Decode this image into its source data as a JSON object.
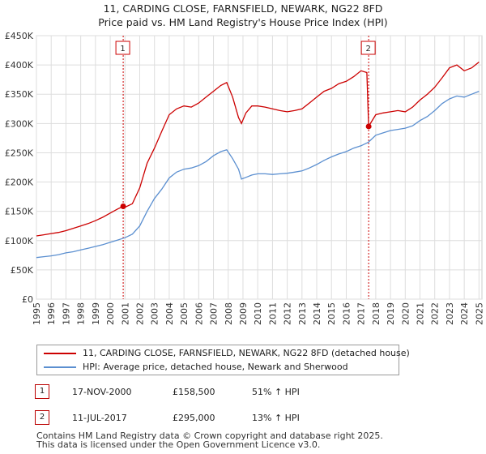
{
  "title": {
    "line1": "11, CARDING CLOSE, FARNSFIELD, NEWARK, NG22 8FD",
    "line2": "Price paid vs. HM Land Registry's House Price Index (HPI)"
  },
  "colors": {
    "property": "#cc0000",
    "hpi": "#5b8fd0",
    "grid": "#dddddd",
    "marker": "#cc0000"
  },
  "chart_data": {
    "type": "line",
    "title": "11, CARDING CLOSE, FARNSFIELD, NEWARK, NG22 8FD — Price paid vs. HM Land Registry's House Price Index (HPI)",
    "xlim": [
      1995.0,
      2025.2
    ],
    "ylim": [
      0,
      450000
    ],
    "y_ticks": [
      {
        "value": 0,
        "label": "£0"
      },
      {
        "value": 50000,
        "label": "£50K"
      },
      {
        "value": 100000,
        "label": "£100K"
      },
      {
        "value": 150000,
        "label": "£150K"
      },
      {
        "value": 200000,
        "label": "£200K"
      },
      {
        "value": 250000,
        "label": "£250K"
      },
      {
        "value": 300000,
        "label": "£300K"
      },
      {
        "value": 350000,
        "label": "£350K"
      },
      {
        "value": 400000,
        "label": "£400K"
      },
      {
        "value": 450000,
        "label": "£450K"
      }
    ],
    "x_ticks": [
      "1995",
      "1996",
      "1997",
      "1998",
      "1999",
      "2000",
      "2001",
      "2002",
      "2003",
      "2004",
      "2005",
      "2006",
      "2007",
      "2008",
      "2009",
      "2010",
      "2011",
      "2012",
      "2013",
      "2014",
      "2015",
      "2016",
      "2017",
      "2018",
      "2019",
      "2020",
      "2021",
      "2022",
      "2023",
      "2024",
      "2025"
    ],
    "grid": true,
    "series": [
      {
        "name": "11, CARDING CLOSE, FARNSFIELD, NEWARK, NG22 8FD (detached house)",
        "x": [
          1995.0,
          1995.5,
          1996.0,
          1996.5,
          1997.0,
          1997.5,
          1998.0,
          1998.5,
          1999.0,
          1999.5,
          2000.0,
          2000.5,
          2000.88,
          2001.0,
          2001.5,
          2002.0,
          2002.5,
          2003.0,
          2003.5,
          2004.0,
          2004.5,
          2005.0,
          2005.5,
          2006.0,
          2006.5,
          2007.0,
          2007.5,
          2007.9,
          2008.3,
          2008.7,
          2008.9,
          2009.2,
          2009.6,
          2010.0,
          2010.5,
          2011.0,
          2011.5,
          2012.0,
          2012.5,
          2013.0,
          2013.5,
          2014.0,
          2014.5,
          2015.0,
          2015.5,
          2016.0,
          2016.5,
          2017.0,
          2017.4,
          2017.52,
          2018.0,
          2018.5,
          2019.0,
          2019.5,
          2020.0,
          2020.5,
          2021.0,
          2021.5,
          2022.0,
          2022.5,
          2023.0,
          2023.5,
          2024.0,
          2024.5,
          2025.0
        ],
        "values": [
          108000,
          110000,
          112000,
          114000,
          117000,
          121000,
          125000,
          129000,
          134000,
          140000,
          147000,
          154000,
          158500,
          157000,
          163000,
          190000,
          232000,
          258000,
          287000,
          315000,
          325000,
          330000,
          328000,
          335000,
          345000,
          355000,
          365000,
          370000,
          345000,
          310000,
          300000,
          318000,
          330000,
          330000,
          328000,
          325000,
          322000,
          320000,
          322000,
          325000,
          335000,
          345000,
          355000,
          360000,
          368000,
          372000,
          380000,
          390000,
          387000,
          295000,
          315000,
          318000,
          320000,
          322000,
          320000,
          328000,
          340000,
          350000,
          362000,
          378000,
          395000,
          400000,
          390000,
          395000,
          405000
        ]
      },
      {
        "name": "HPI: Average price, detached house, Newark and Sherwood",
        "x": [
          1995.0,
          1995.5,
          1996.0,
          1996.5,
          1997.0,
          1997.5,
          1998.0,
          1998.5,
          1999.0,
          1999.5,
          2000.0,
          2000.5,
          2001.0,
          2001.5,
          2002.0,
          2002.5,
          2003.0,
          2003.5,
          2004.0,
          2004.5,
          2005.0,
          2005.5,
          2006.0,
          2006.5,
          2007.0,
          2007.5,
          2007.9,
          2008.3,
          2008.7,
          2008.9,
          2009.2,
          2009.6,
          2010.0,
          2010.5,
          2011.0,
          2011.5,
          2012.0,
          2012.5,
          2013.0,
          2013.5,
          2014.0,
          2014.5,
          2015.0,
          2015.5,
          2016.0,
          2016.5,
          2017.0,
          2017.5,
          2018.0,
          2018.5,
          2019.0,
          2019.5,
          2020.0,
          2020.5,
          2021.0,
          2021.5,
          2022.0,
          2022.5,
          2023.0,
          2023.5,
          2024.0,
          2024.5,
          2025.0
        ],
        "values": [
          71000,
          72500,
          74000,
          76000,
          79000,
          81000,
          84000,
          87000,
          90000,
          93000,
          97000,
          101000,
          105000,
          111000,
          125000,
          150000,
          172000,
          188000,
          207000,
          217000,
          222000,
          224000,
          228000,
          235000,
          245000,
          252000,
          255000,
          240000,
          222000,
          205000,
          208000,
          212000,
          214000,
          214000,
          213000,
          214000,
          215000,
          217000,
          219000,
          224000,
          230000,
          237000,
          243000,
          248000,
          252000,
          258000,
          262000,
          268000,
          280000,
          284000,
          288000,
          290000,
          292000,
          296000,
          305000,
          312000,
          322000,
          334000,
          342000,
          347000,
          345000,
          350000,
          355000
        ]
      }
    ],
    "sales": [
      {
        "marker": "1",
        "x": 2000.88,
        "value": 158500,
        "date": "17-NOV-2000",
        "price": "£158,500",
        "hpi_change": "51% ↑ HPI"
      },
      {
        "marker": "2",
        "x": 2017.52,
        "value": 295000,
        "date": "11-JUL-2017",
        "price": "£295,000",
        "hpi_change": "13% ↑ HPI"
      }
    ]
  },
  "legend": {
    "property_label": "11, CARDING CLOSE, FARNSFIELD, NEWARK, NG22 8FD (detached house)",
    "hpi_label": "HPI: Average price, detached house, Newark and Sherwood"
  },
  "footer": {
    "line1": "Contains HM Land Registry data © Crown copyright and database right 2025.",
    "line2": "This data is licensed under the Open Government Licence v3.0."
  }
}
